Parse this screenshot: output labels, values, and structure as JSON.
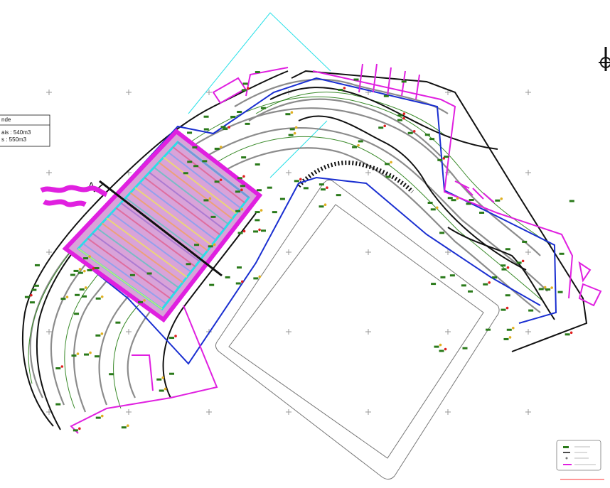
{
  "drawing": {
    "section_mark": "A",
    "legend_title": "nde",
    "volume_1": "ais : 540m3",
    "volume_2": "s : 550m3"
  }
}
